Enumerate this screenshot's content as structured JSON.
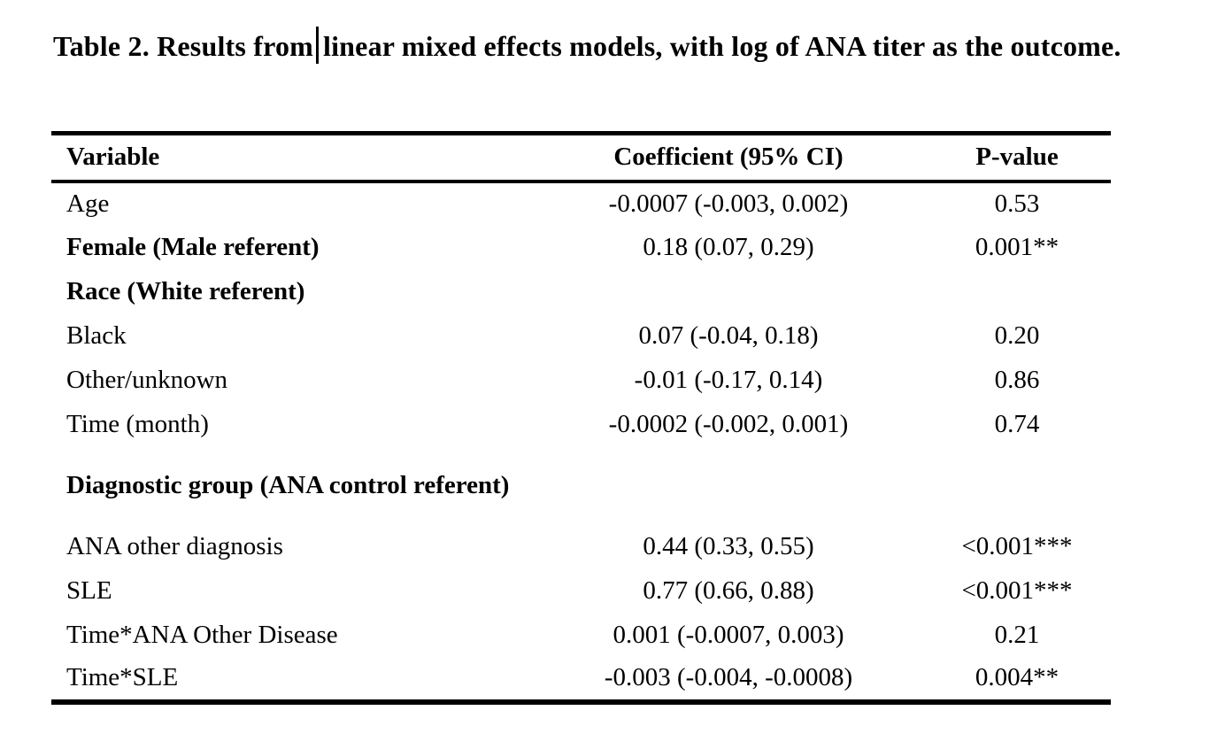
{
  "document": {
    "title": {
      "before_cursor": "Table 2. Results from",
      "after_cursor": "linear mixed effects models, with log of ANA titer as the outcome."
    },
    "table": {
      "columns": [
        "Variable",
        "Coefficient (95% CI)",
        "P-value"
      ],
      "rows": [
        {
          "variable": "Age",
          "bold": false,
          "coefficient": "-0.0007 (-0.003, 0.002)",
          "p_value": "0.53"
        },
        {
          "variable": "Female (Male referent)",
          "bold": true,
          "coefficient": "0.18 (0.07, 0.29)",
          "p_value": "0.001**"
        },
        {
          "variable": "Race (White referent)",
          "bold": true,
          "coefficient": "",
          "p_value": ""
        },
        {
          "variable": "Black",
          "bold": false,
          "coefficient": "0.07 (-0.04, 0.18)",
          "p_value": "0.20"
        },
        {
          "variable": "Other/unknown",
          "bold": false,
          "coefficient": "-0.01 (-0.17, 0.14)",
          "p_value": "0.86"
        },
        {
          "variable": "Time (month)",
          "bold": false,
          "coefficient": "-0.0002 (-0.002, 0.001)",
          "p_value": "0.74"
        },
        {
          "variable": "Diagnostic group (ANA control referent)",
          "bold": true,
          "coefficient": "",
          "p_value": ""
        },
        {
          "variable": "ANA other diagnosis",
          "bold": false,
          "coefficient": "0.44 (0.33, 0.55)",
          "p_value": "<0.001***"
        },
        {
          "variable": "SLE",
          "bold": false,
          "coefficient": "0.77 (0.66, 0.88)",
          "p_value": "<0.001***"
        },
        {
          "variable": "Time*ANA Other Disease",
          "bold": false,
          "coefficient": "0.001 (-0.0007, 0.003)",
          "p_value": "0.21"
        },
        {
          "variable": "Time*SLE",
          "bold": false,
          "coefficient": "-0.003 (-0.004, -0.0008)",
          "p_value": "0.004**"
        }
      ]
    },
    "colors": {
      "text": "#000000",
      "background": "#ffffff",
      "rule": "#000000"
    }
  }
}
